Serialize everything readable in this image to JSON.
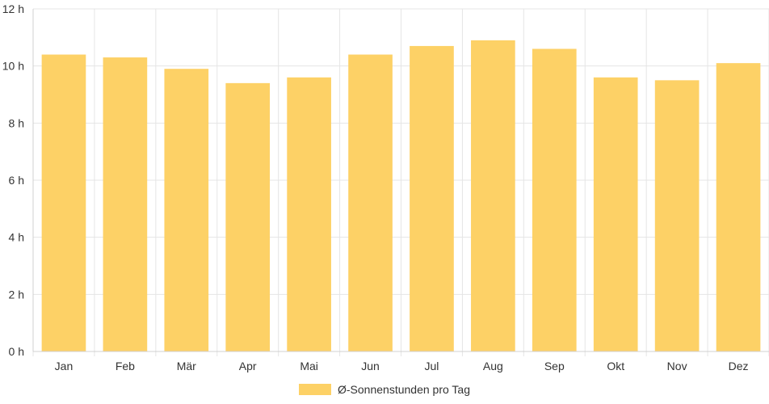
{
  "chart_data": {
    "type": "bar",
    "categories": [
      "Jan",
      "Feb",
      "Mär",
      "Apr",
      "Mai",
      "Jun",
      "Jul",
      "Aug",
      "Sep",
      "Okt",
      "Nov",
      "Dez"
    ],
    "series": [
      {
        "name": "Ø-Sonnenstunden pro Tag",
        "values": [
          10.4,
          10.3,
          9.9,
          9.4,
          9.6,
          10.4,
          10.7,
          10.9,
          10.6,
          9.6,
          9.5,
          10.1
        ],
        "color": "#fdd166"
      }
    ],
    "y_ticks": [
      "0 h",
      "2 h",
      "4 h",
      "6 h",
      "8 h",
      "10 h",
      "12 h"
    ],
    "ylim": [
      0,
      12
    ],
    "grid": true,
    "legend_position": "bottom-center"
  }
}
